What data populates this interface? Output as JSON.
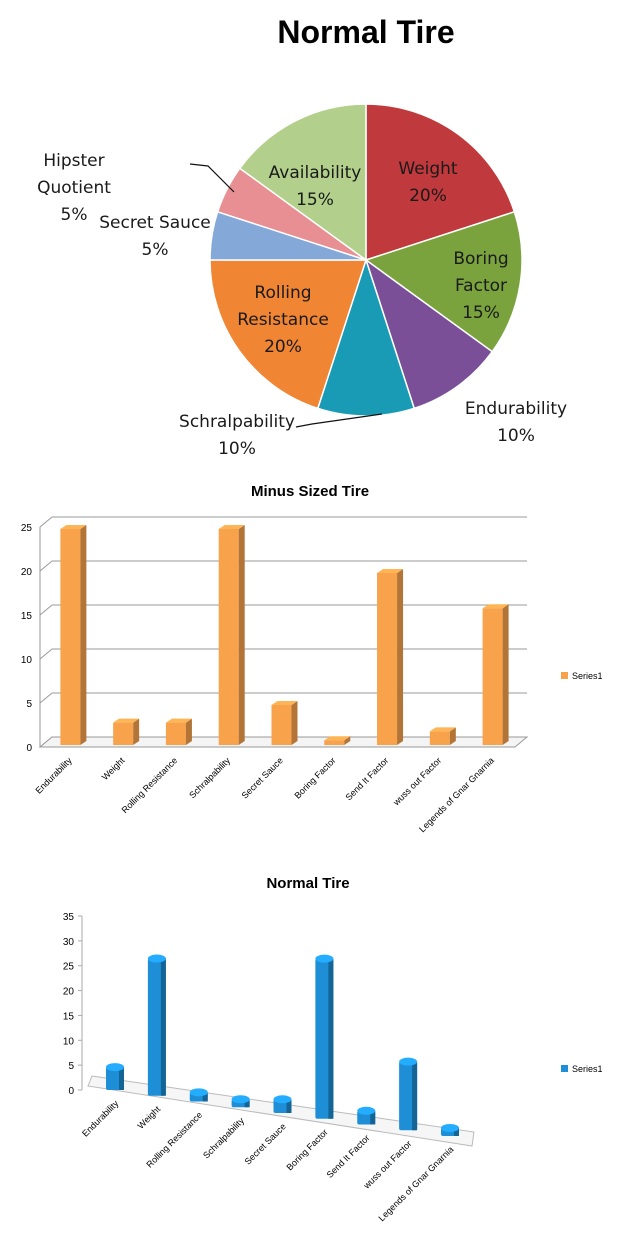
{
  "chart_data": [
    {
      "type": "pie",
      "title": "Normal Tire",
      "slices": [
        {
          "label": "Weight",
          "value": 20,
          "display": "20%",
          "color": "#c0393c"
        },
        {
          "label": "Boring Factor",
          "value": 15,
          "display": "15%",
          "color": "#7aa33e"
        },
        {
          "label": "Endurability",
          "value": 10,
          "display": "10%",
          "color": "#7a4f98"
        },
        {
          "label": "Schralpability",
          "value": 10,
          "display": "10%",
          "color": "#1a9bb5"
        },
        {
          "label": "Rolling Resistance",
          "value": 20,
          "display": "20%",
          "color": "#f08533"
        },
        {
          "label": "Secret Sauce",
          "value": 5,
          "display": "5%",
          "color": "#84a8d7"
        },
        {
          "label": "Hipster Quotient",
          "value": 5,
          "display": "5%",
          "color": "#e78f93"
        },
        {
          "label": "Availability",
          "value": 15,
          "display": "15%",
          "color": "#b2d08c"
        }
      ]
    },
    {
      "type": "bar",
      "title": "Minus Sized Tire",
      "categories": [
        "Endurability",
        "Weight",
        "Rolling Resistance",
        "Schralpability",
        "Secret Sauce",
        "Boring Factor",
        "Send It Factor",
        "wuss out Factor",
        "Legends of Gnar Gnarnia"
      ],
      "series": [
        {
          "name": "Series1",
          "values": [
            25,
            3,
            3,
            25,
            5,
            1,
            20,
            2,
            16
          ]
        }
      ],
      "yticks": [
        "0",
        "5",
        "10",
        "15",
        "20",
        "25"
      ],
      "ylim": [
        0,
        25
      ],
      "color": "#f8a24c",
      "grid": true,
      "legend": "right"
    },
    {
      "type": "bar",
      "title": "Normal Tire",
      "categories": [
        "Endurability",
        "Weight",
        "Rolling Resistance",
        "Schralpability",
        "Secret Sauce",
        "Boring Factor",
        "Send It Factor",
        "wuss out Factor",
        "Legends of Gnar Gnarnia"
      ],
      "series": [
        {
          "name": "Series1",
          "values": [
            5,
            30,
            2,
            1,
            3,
            35,
            3,
            15,
            1
          ]
        }
      ],
      "yticks": [
        "0",
        "5",
        "10",
        "15",
        "20",
        "25",
        "30",
        "35"
      ],
      "ylim": [
        0,
        35
      ],
      "color": "#1e8fd6",
      "grid": false,
      "legend": "right"
    }
  ]
}
